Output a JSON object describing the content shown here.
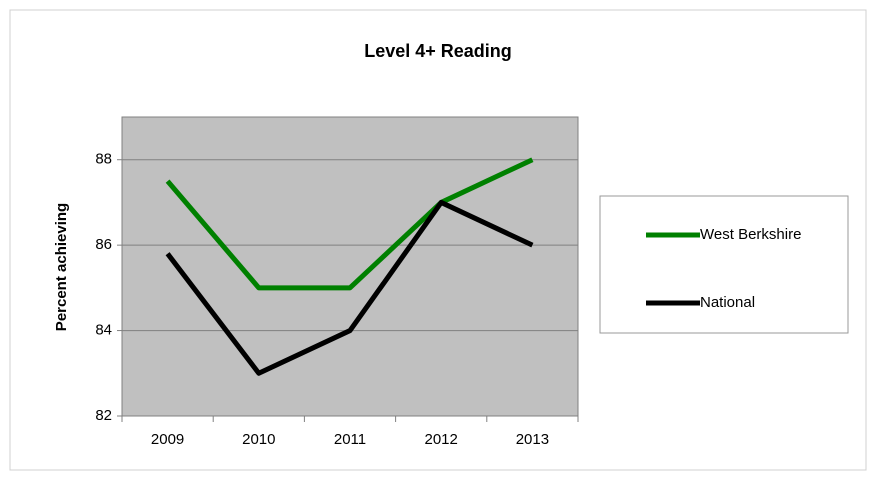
{
  "chart_data": {
    "type": "line",
    "title": "Level 4+ Reading",
    "y_label": "Percent achieving",
    "categories": [
      "2009",
      "2010",
      "2011",
      "2012",
      "2013"
    ],
    "series": [
      {
        "name": "West Berkshire",
        "color": "#008000",
        "values": [
          87.5,
          85,
          85,
          87,
          88
        ]
      },
      {
        "name": "National",
        "color": "#000000",
        "values": [
          85.8,
          83,
          84,
          87,
          86
        ]
      }
    ],
    "ylim": [
      82,
      89
    ],
    "yticks": [
      82,
      84,
      86,
      88
    ],
    "grid": true,
    "legend": "right"
  }
}
